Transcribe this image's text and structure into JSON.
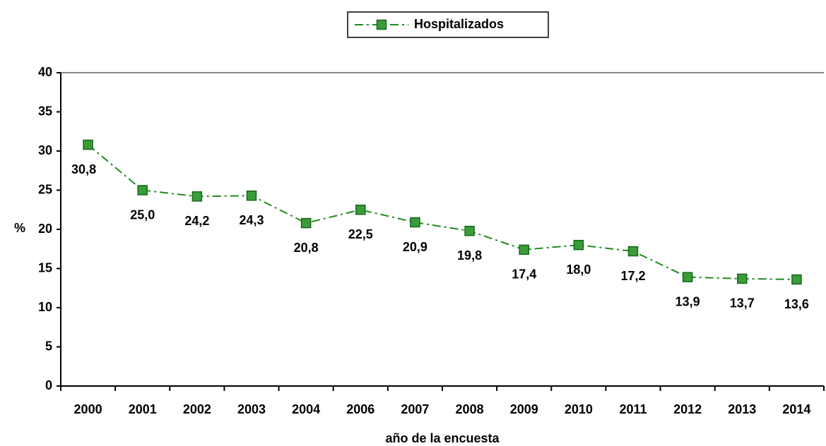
{
  "chart_data": {
    "type": "line",
    "categories": [
      "2000",
      "2001",
      "2002",
      "2003",
      "2004",
      "2006",
      "2007",
      "2008",
      "2009",
      "2010",
      "2011",
      "2012",
      "2013",
      "2014"
    ],
    "series": [
      {
        "name": "Hospitalizados",
        "color": "#1e8c1e",
        "values": [
          30.8,
          25.0,
          24.2,
          24.3,
          20.8,
          22.5,
          20.9,
          19.8,
          17.4,
          18.0,
          17.2,
          13.9,
          13.7,
          13.6
        ],
        "value_labels": [
          "30,8",
          "25,0",
          "24,2",
          "24,3",
          "20,8",
          "22,5",
          "20,9",
          "19,8",
          "17,4",
          "18,0",
          "17,2",
          "13,9",
          "13,7",
          "13,6"
        ]
      }
    ],
    "ylim": [
      0,
      40
    ],
    "yticks": [
      0,
      5,
      10,
      15,
      20,
      25,
      30,
      35,
      40
    ],
    "y_label": "%",
    "x_label": "año de la encuesta",
    "legend": "top"
  }
}
